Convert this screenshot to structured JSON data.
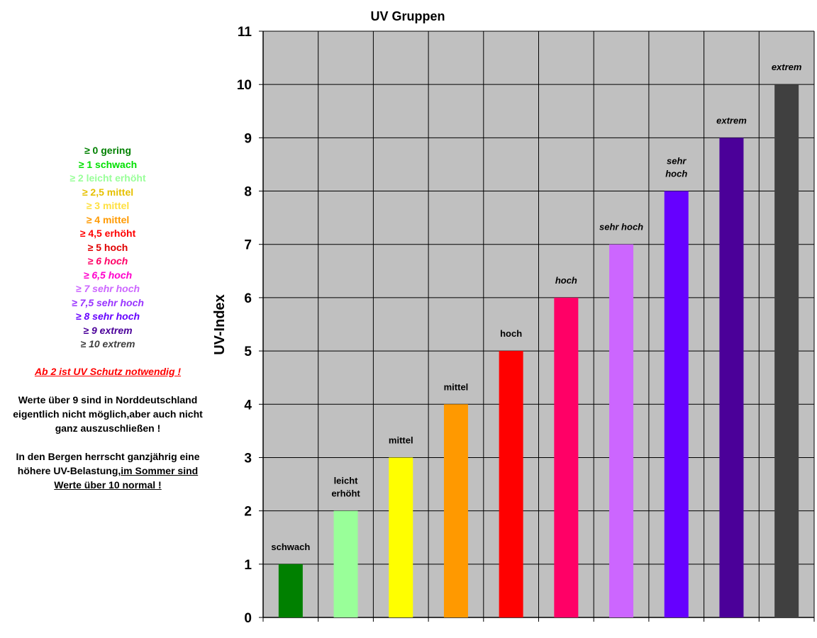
{
  "chart_data": {
    "type": "bar",
    "title": "UV Gruppen",
    "ylabel": "UV-Index",
    "xlabel": "",
    "ylim": [
      0,
      11
    ],
    "yticks": [
      0,
      1,
      2,
      3,
      4,
      5,
      6,
      7,
      8,
      9,
      10,
      11
    ],
    "grid": true,
    "categories": [
      "schwach",
      "leicht erhöht",
      "mittel",
      "mittel",
      "hoch",
      "hoch",
      "sehr hoch",
      "sehr hoch",
      "extrem",
      "extrem"
    ],
    "values": [
      1,
      2,
      3,
      4,
      5,
      6,
      7,
      8,
      9,
      10
    ],
    "data_labels": [
      [
        "schwach"
      ],
      [
        "leicht",
        "erhöht"
      ],
      [
        "mittel"
      ],
      [
        "mittel"
      ],
      [
        "hoch"
      ],
      [
        "hoch"
      ],
      [
        "sehr hoch"
      ],
      [
        "sehr",
        "hoch"
      ],
      [
        "extrem"
      ],
      [
        "extrem"
      ]
    ],
    "label_italic": [
      false,
      false,
      false,
      false,
      false,
      true,
      true,
      true,
      true,
      true
    ],
    "colors": [
      "#008000",
      "#99ff99",
      "#ffff00",
      "#ff9900",
      "#ff0000",
      "#ff0066",
      "#cc66ff",
      "#6600ff",
      "#4b0099",
      "#404040"
    ],
    "plot_background": "#c0c0c0"
  },
  "legend": [
    {
      "text": "≥ 0 gering",
      "color": "#008000",
      "italic": false
    },
    {
      "text": "≥ 1 schwach",
      "color": "#00e000",
      "italic": false
    },
    {
      "text": "≥ 2 leicht erhöht",
      "color": "#99ff99",
      "italic": false
    },
    {
      "text": "≥ 2,5 mittel",
      "color": "#e6c000",
      "italic": false
    },
    {
      "text": "≥ 3 mittel",
      "color": "#ffe040",
      "italic": false
    },
    {
      "text": "≥ 4 mittel",
      "color": "#ff9900",
      "italic": false
    },
    {
      "text": "≥ 4,5 erhöht",
      "color": "#ff0000",
      "italic": false
    },
    {
      "text": "≥ 5 hoch",
      "color": "#e00000",
      "italic": false
    },
    {
      "text": "≥ 6 hoch",
      "color": "#ff0066",
      "italic": true
    },
    {
      "text": "≥ 6,5 hoch",
      "color": "#ff00cc",
      "italic": true
    },
    {
      "text": "≥ 7 sehr hoch",
      "color": "#cc66ff",
      "italic": true
    },
    {
      "text": "≥ 7,5 sehr hoch",
      "color": "#9933ff",
      "italic": true
    },
    {
      "text": "≥ 8 sehr hoch",
      "color": "#6600ff",
      "italic": true
    },
    {
      "text": "≥ 9 extrem",
      "color": "#4b0099",
      "italic": true
    },
    {
      "text": "≥ 10 extrem",
      "color": "#404040",
      "italic": true
    }
  ],
  "notes": {
    "warning": "Ab 2 ist UV Schutz notwendig !",
    "north_1": "Werte über 9 sind in Norddeutschland",
    "north_2": "eigentlich nicht möglich,aber auch nicht",
    "north_3": "ganz auszuschließen !",
    "mountain_1": "In den Bergen herrscht ganzjährig eine",
    "mountain_2a": "höhere UV-Belastung,",
    "mountain_2b": "im Sommer sind",
    "mountain_3": "Werte über 10 normal !"
  }
}
